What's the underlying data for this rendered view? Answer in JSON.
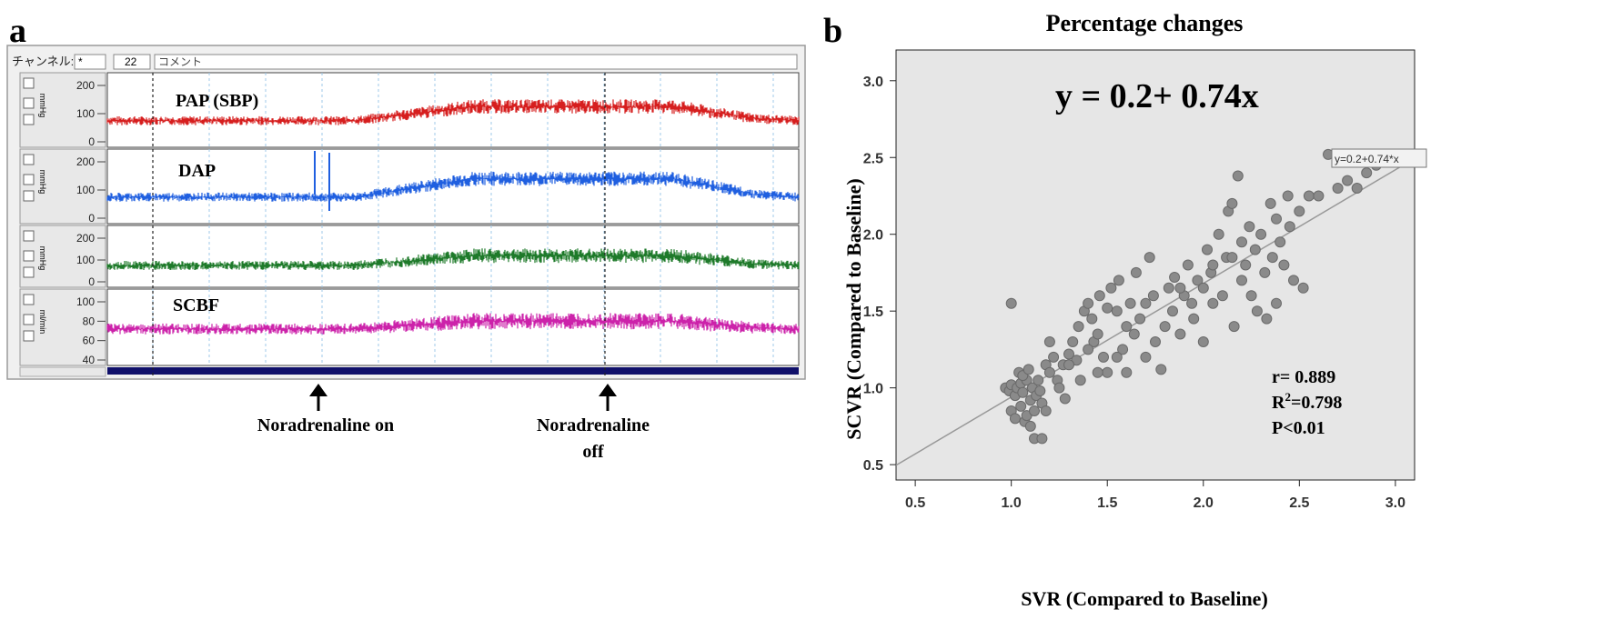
{
  "panel_a": {
    "label": "a",
    "toolbar": {
      "channel_label": "チャンネル:",
      "channel_value": "*",
      "number_value": "22",
      "comment_label": "コメント"
    },
    "channels": [
      {
        "label": "PAP (SBP)",
        "unit_tag": "mmHg",
        "ticks": [
          "200",
          "100",
          "0"
        ],
        "color": "#d61e1e",
        "baseline": 75,
        "peak": 125
      },
      {
        "label": "DAP",
        "unit_tag": "mmHg",
        "ticks": [
          "200",
          "100",
          "0"
        ],
        "color": "#1f5fe0",
        "baseline": 75,
        "peak": 140
      },
      {
        "label": "",
        "unit_tag": "mmHg",
        "ticks": [
          "200",
          "100",
          "0"
        ],
        "color": "#1e7a2a",
        "baseline": 75,
        "peak": 120
      },
      {
        "label": "SCBF",
        "unit_tag": "ml/min",
        "ticks": [
          "100",
          "80",
          "60",
          "40"
        ],
        "color": "#cc22aa",
        "baseline": 72,
        "peak": 80
      }
    ],
    "events": [
      {
        "label_lines": [
          "Noradrenaline  on"
        ]
      },
      {
        "label_lines": [
          "Noradrenaline",
          "off"
        ]
      }
    ]
  },
  "chart_data": {
    "type": "scatter",
    "panel_label": "b",
    "title": "Percentage changes",
    "xlabel": "SVR (Compared to Baseline)",
    "ylabel": "SCVR (Compared to Baseline)",
    "xlim": [
      0.4,
      3.1
    ],
    "ylim": [
      0.4,
      3.2
    ],
    "xticks": [
      "0.5",
      "1.0",
      "1.5",
      "2.0",
      "2.5",
      "3.0"
    ],
    "yticks": [
      "0.5",
      "1.0",
      "1.5",
      "2.0",
      "2.5",
      "3.0"
    ],
    "equation": "y = 0.2+ 0.74x",
    "line_label": "y=0.2+0.74*x",
    "fit": {
      "intercept": 0.2,
      "slope": 0.74
    },
    "stats": {
      "r": "r= 0.889",
      "r2_prefix": "R",
      "r2_sup": "2",
      "r2_value": "=0.798",
      "p": "P<0.01"
    },
    "points": [
      [
        0.97,
        1.0
      ],
      [
        0.99,
        0.98
      ],
      [
        1.0,
        1.02
      ],
      [
        1.02,
        0.95
      ],
      [
        1.03,
        1.0
      ],
      [
        1.05,
        1.03
      ],
      [
        1.06,
        0.97
      ],
      [
        1.08,
        1.05
      ],
      [
        1.1,
        0.92
      ],
      [
        1.0,
        0.85
      ],
      [
        1.02,
        0.8
      ],
      [
        1.05,
        0.88
      ],
      [
        1.07,
        0.78
      ],
      [
        1.08,
        0.82
      ],
      [
        1.1,
        0.75
      ],
      [
        1.12,
        0.85
      ],
      [
        1.04,
        1.1
      ],
      [
        1.06,
        1.08
      ],
      [
        1.09,
        1.12
      ],
      [
        1.11,
        1.0
      ],
      [
        1.13,
        0.95
      ],
      [
        1.15,
        0.98
      ],
      [
        1.14,
        1.05
      ],
      [
        1.16,
        0.9
      ],
      [
        1.18,
        0.85
      ],
      [
        1.12,
        0.67
      ],
      [
        1.16,
        0.67
      ],
      [
        1.0,
        1.55
      ],
      [
        1.18,
        1.15
      ],
      [
        1.2,
        1.1
      ],
      [
        1.22,
        1.2
      ],
      [
        1.24,
        1.05
      ],
      [
        1.25,
        1.0
      ],
      [
        1.27,
        1.15
      ],
      [
        1.28,
        0.93
      ],
      [
        1.3,
        1.22
      ],
      [
        1.32,
        1.3
      ],
      [
        1.34,
        1.18
      ],
      [
        1.35,
        1.4
      ],
      [
        1.36,
        1.05
      ],
      [
        1.38,
        1.5
      ],
      [
        1.4,
        1.55
      ],
      [
        1.42,
        1.45
      ],
      [
        1.43,
        1.3
      ],
      [
        1.45,
        1.35
      ],
      [
        1.46,
        1.6
      ],
      [
        1.48,
        1.2
      ],
      [
        1.5,
        1.52
      ],
      [
        1.5,
        1.1
      ],
      [
        1.52,
        1.65
      ],
      [
        1.55,
        1.5
      ],
      [
        1.56,
        1.7
      ],
      [
        1.58,
        1.25
      ],
      [
        1.6,
        1.4
      ],
      [
        1.6,
        1.1
      ],
      [
        1.62,
        1.55
      ],
      [
        1.64,
        1.35
      ],
      [
        1.65,
        1.75
      ],
      [
        1.67,
        1.45
      ],
      [
        1.7,
        1.2
      ],
      [
        1.72,
        1.85
      ],
      [
        1.74,
        1.6
      ],
      [
        1.75,
        1.3
      ],
      [
        1.78,
        1.12
      ],
      [
        1.8,
        1.4
      ],
      [
        1.82,
        1.65
      ],
      [
        1.84,
        1.5
      ],
      [
        1.85,
        1.72
      ],
      [
        1.88,
        1.35
      ],
      [
        1.9,
        1.6
      ],
      [
        1.92,
        1.8
      ],
      [
        1.94,
        1.55
      ],
      [
        1.95,
        1.45
      ],
      [
        1.97,
        1.7
      ],
      [
        2.0,
        1.65
      ],
      [
        2.0,
        1.3
      ],
      [
        2.02,
        1.9
      ],
      [
        2.04,
        1.75
      ],
      [
        2.05,
        1.55
      ],
      [
        2.08,
        2.0
      ],
      [
        2.1,
        1.6
      ],
      [
        2.12,
        1.85
      ],
      [
        2.13,
        2.15
      ],
      [
        2.15,
        2.2
      ],
      [
        2.16,
        1.4
      ],
      [
        2.18,
        2.38
      ],
      [
        2.2,
        1.7
      ],
      [
        2.2,
        1.95
      ],
      [
        2.22,
        1.8
      ],
      [
        2.24,
        2.05
      ],
      [
        2.25,
        1.6
      ],
      [
        2.27,
        1.9
      ],
      [
        2.28,
        1.5
      ],
      [
        2.3,
        2.0
      ],
      [
        2.32,
        1.75
      ],
      [
        2.33,
        1.45
      ],
      [
        2.35,
        2.2
      ],
      [
        2.36,
        1.85
      ],
      [
        2.38,
        2.1
      ],
      [
        2.4,
        1.95
      ],
      [
        2.42,
        1.8
      ],
      [
        2.44,
        2.25
      ],
      [
        2.45,
        2.05
      ],
      [
        2.47,
        1.7
      ],
      [
        2.5,
        2.15
      ],
      [
        2.52,
        1.65
      ],
      [
        2.55,
        2.25
      ],
      [
        2.6,
        2.25
      ],
      [
        2.65,
        2.52
      ],
      [
        2.7,
        2.3
      ],
      [
        2.75,
        2.35
      ],
      [
        2.8,
        2.3
      ],
      [
        2.85,
        2.4
      ],
      [
        2.9,
        2.45
      ],
      [
        1.3,
        1.15
      ],
      [
        1.4,
        1.25
      ],
      [
        1.55,
        1.2
      ],
      [
        1.7,
        1.55
      ],
      [
        1.88,
        1.65
      ],
      [
        2.05,
        1.8
      ],
      [
        2.15,
        1.85
      ],
      [
        2.38,
        1.55
      ],
      [
        1.2,
        1.3
      ],
      [
        1.45,
        1.1
      ]
    ]
  }
}
